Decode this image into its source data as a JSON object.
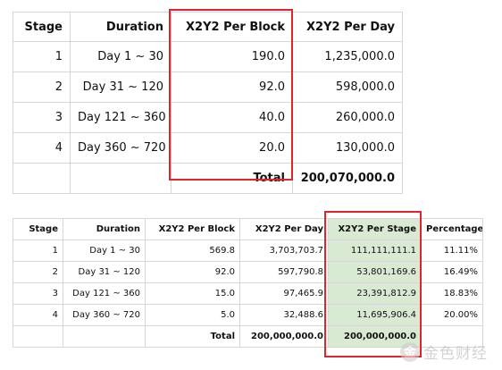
{
  "table_top": {
    "headers": [
      "Stage",
      "Duration",
      "X2Y2 Per Block",
      "X2Y2 Per Day"
    ],
    "rows": [
      {
        "stage": "1",
        "duration": "Day 1 ~ 30",
        "per_block": "190.0",
        "per_day": "1,235,000.0"
      },
      {
        "stage": "2",
        "duration": "Day 31 ~ 120",
        "per_block": "92.0",
        "per_day": "598,000.0"
      },
      {
        "stage": "3",
        "duration": "Day 121 ~ 360",
        "per_block": "40.0",
        "per_day": "260,000.0"
      },
      {
        "stage": "4",
        "duration": "Day 360 ~ 720",
        "per_block": "20.0",
        "per_day": "130,000.0"
      }
    ],
    "total_label": "Total",
    "total_value": "200,070,000.0"
  },
  "table_bottom": {
    "headers": [
      "Stage",
      "Duration",
      "X2Y2 Per Block",
      "X2Y2 Per Day",
      "X2Y2 Per Stage",
      "Percentage"
    ],
    "rows": [
      {
        "stage": "1",
        "duration": "Day 1 ~ 30",
        "per_block": "569.8",
        "per_day": "3,703,703.7",
        "per_stage": "111,111,111.1",
        "percentage": "11.11%"
      },
      {
        "stage": "2",
        "duration": "Day 31 ~ 120",
        "per_block": "92.0",
        "per_day": "597,790.8",
        "per_stage": "53,801,169.6",
        "percentage": "16.49%"
      },
      {
        "stage": "3",
        "duration": "Day 121 ~ 360",
        "per_block": "15.0",
        "per_day": "97,465.9",
        "per_stage": "23,391,812.9",
        "percentage": "18.83%"
      },
      {
        "stage": "4",
        "duration": "Day 360 ~ 720",
        "per_block": "5.0",
        "per_day": "32,488.6",
        "per_stage": "11,695,906.4",
        "percentage": "20.00%"
      }
    ],
    "total_label": "Total",
    "total_per_day": "200,000,000.0",
    "total_per_stage": "200,000,000.0"
  },
  "colors": {
    "highlight_border": "#e0242b",
    "stage_column_fill": "#d9ead3"
  },
  "watermark": {
    "icon": "jinse-logo-icon",
    "logo_glyph": "金",
    "text": "金色财经"
  }
}
